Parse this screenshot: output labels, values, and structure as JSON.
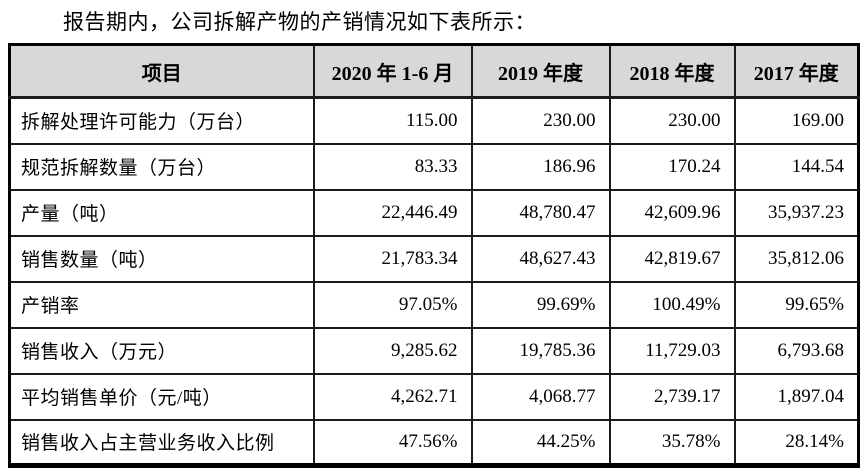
{
  "title": "报告期内，公司拆解产物的产销情况如下表所示：",
  "table": {
    "header_bg": "#d8d8d8",
    "border_color": "#000000",
    "columns": [
      "项目",
      "2020 年 1-6 月",
      "2019 年度",
      "2018 年度",
      "2017 年度"
    ],
    "rows": [
      {
        "label": "拆解处理许可能力（万台）",
        "values": [
          "115.00",
          "230.00",
          "230.00",
          "169.00"
        ]
      },
      {
        "label": "规范拆解数量（万台）",
        "values": [
          "83.33",
          "186.96",
          "170.24",
          "144.54"
        ]
      },
      {
        "label": "产量（吨）",
        "values": [
          "22,446.49",
          "48,780.47",
          "42,609.96",
          "35,937.23"
        ]
      },
      {
        "label": "销售数量（吨）",
        "values": [
          "21,783.34",
          "48,627.43",
          "42,819.67",
          "35,812.06"
        ]
      },
      {
        "label": "产销率",
        "values": [
          "97.05%",
          "99.69%",
          "100.49%",
          "99.65%"
        ]
      },
      {
        "label": "销售收入（万元）",
        "values": [
          "9,285.62",
          "19,785.36",
          "11,729.03",
          "6,793.68"
        ]
      },
      {
        "label": "平均销售单价（元/吨）",
        "values": [
          "4,262.71",
          "4,068.77",
          "2,739.17",
          "1,897.04"
        ]
      },
      {
        "label": "销售收入占主营业务收入比例",
        "values": [
          "47.56%",
          "44.25%",
          "35.78%",
          "28.14%"
        ]
      }
    ]
  }
}
